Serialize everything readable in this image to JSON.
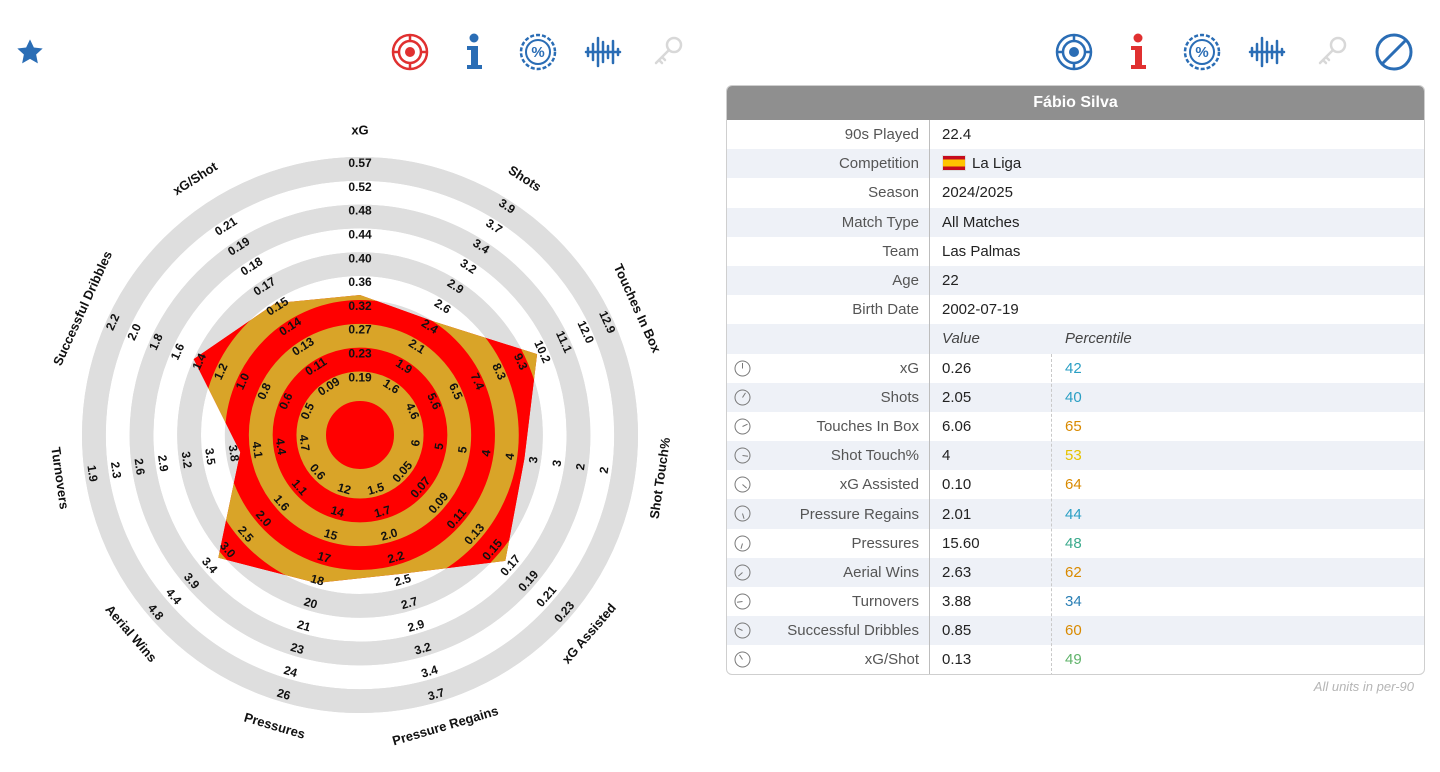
{
  "toolbar_left": [
    {
      "name": "favorite-star-icon",
      "color": "#2a6db5"
    },
    {
      "name": "radar-icon",
      "color": "#e03030"
    },
    {
      "name": "info-icon",
      "color": "#2a6db5"
    },
    {
      "name": "percent-icon",
      "color": "#2a6db5"
    },
    {
      "name": "waveform-icon",
      "color": "#2a6db5"
    },
    {
      "name": "key-icon",
      "color": "#d8d8d8"
    }
  ],
  "toolbar_right": [
    {
      "name": "radar-icon",
      "color": "#2a6db5"
    },
    {
      "name": "info-icon",
      "color": "#e03030"
    },
    {
      "name": "percent-icon",
      "color": "#2a6db5"
    },
    {
      "name": "waveform-icon",
      "color": "#2a6db5"
    },
    {
      "name": "key-icon",
      "color": "#d8d8d8"
    },
    {
      "name": "block-icon",
      "color": "#2a6db5"
    }
  ],
  "colors": {
    "red": "#ff0000",
    "gold": "#d9a428",
    "ring": "#dedede",
    "header": "#8f8f8f"
  },
  "chart_data": {
    "type": "radar",
    "metrics": [
      {
        "name": "xG",
        "ticks": [
          "0.19",
          "0.23",
          "0.27",
          "0.32",
          "0.36",
          "0.40",
          "0.44",
          "0.48",
          "0.52",
          "0.57"
        ],
        "percentile": 42
      },
      {
        "name": "Shots",
        "ticks": [
          "1.6",
          "1.9",
          "2.1",
          "2.4",
          "2.6",
          "2.9",
          "3.2",
          "3.4",
          "3.7",
          "3.9"
        ],
        "percentile": 40
      },
      {
        "name": "Touches In Box",
        "ticks": [
          "4.6",
          "5.6",
          "6.5",
          "7.4",
          "8.3",
          "9.3",
          "10.2",
          "11.1",
          "12.0",
          "12.9"
        ],
        "percentile": 65
      },
      {
        "name": "Shot Touch%",
        "ticks": [
          "6",
          "5",
          "5",
          "4",
          "4",
          "3",
          "3",
          "2",
          "2"
        ],
        "percentile": 53
      },
      {
        "name": "xG Assisted",
        "ticks": [
          "0.05",
          "0.07",
          "0.09",
          "0.11",
          "0.13",
          "0.15",
          "0.17",
          "0.19",
          "0.21",
          "0.23"
        ],
        "percentile": 64
      },
      {
        "name": "Pressure Regains",
        "ticks": [
          "1.5",
          "1.7",
          "2.0",
          "2.2",
          "2.5",
          "2.7",
          "2.9",
          "3.2",
          "3.4",
          "3.7"
        ],
        "percentile": 44
      },
      {
        "name": "Pressures",
        "ticks": [
          "12",
          "14",
          "15",
          "17",
          "18",
          "20",
          "21",
          "23",
          "24",
          "26"
        ],
        "percentile": 48
      },
      {
        "name": "Aerial Wins",
        "ticks": [
          "0.6",
          "1.1",
          "1.6",
          "2.0",
          "2.5",
          "3.0",
          "3.4",
          "3.9",
          "4.4",
          "4.8"
        ],
        "percentile": 62
      },
      {
        "name": "Turnovers",
        "ticks": [
          "4.7",
          "4.4",
          "4.1",
          "3.8",
          "3.5",
          "3.2",
          "2.9",
          "2.6",
          "2.3",
          "1.9"
        ],
        "percentile": 34
      },
      {
        "name": "Successful Dribbles",
        "ticks": [
          "0.5",
          "0.6",
          "0.8",
          "1.0",
          "1.2",
          "1.4",
          "1.6",
          "1.8",
          "2.0",
          "2.2"
        ],
        "percentile": 60
      },
      {
        "name": "xG/Shot",
        "ticks": [
          "0.09",
          "0.11",
          "0.13",
          "0.14",
          "0.15",
          "0.17",
          "0.18",
          "0.19",
          "0.21"
        ],
        "percentile": 49
      }
    ]
  },
  "panel": {
    "player_name": "Fábio Silva",
    "info": [
      {
        "label": "90s Played",
        "value": "22.4"
      },
      {
        "label": "Competition",
        "value": "La Liga"
      },
      {
        "label": "Season",
        "value": "2024/2025"
      },
      {
        "label": "Match Type",
        "value": "All Matches"
      },
      {
        "label": "Team",
        "value": "Las Palmas"
      },
      {
        "label": "Age",
        "value": "22"
      },
      {
        "label": "Birth Date",
        "value": "2002-07-19"
      }
    ],
    "value_header": "Value",
    "percentile_header": "Percentile",
    "stats": [
      {
        "label": "xG",
        "value": "0.26",
        "percentile": "42",
        "color": "#2a9fc4"
      },
      {
        "label": "Shots",
        "value": "2.05",
        "percentile": "40",
        "color": "#2a9fc4"
      },
      {
        "label": "Touches In Box",
        "value": "6.06",
        "percentile": "65",
        "color": "#d98a00"
      },
      {
        "label": "Shot Touch%",
        "value": "4",
        "percentile": "53",
        "color": "#e6c200"
      },
      {
        "label": "xG Assisted",
        "value": "0.10",
        "percentile": "64",
        "color": "#d98a00"
      },
      {
        "label": "Pressure Regains",
        "value": "2.01",
        "percentile": "44",
        "color": "#2a9fc4"
      },
      {
        "label": "Pressures",
        "value": "15.60",
        "percentile": "48",
        "color": "#3aaa8c"
      },
      {
        "label": "Aerial Wins",
        "value": "2.63",
        "percentile": "62",
        "color": "#d98a00"
      },
      {
        "label": "Turnovers",
        "value": "3.88",
        "percentile": "34",
        "color": "#2a7fb5"
      },
      {
        "label": "Successful Dribbles",
        "value": "0.85",
        "percentile": "60",
        "color": "#d98a00"
      },
      {
        "label": "xG/Shot",
        "value": "0.13",
        "percentile": "49",
        "color": "#5fb36a"
      }
    ],
    "footnote": "All units in per-90"
  }
}
